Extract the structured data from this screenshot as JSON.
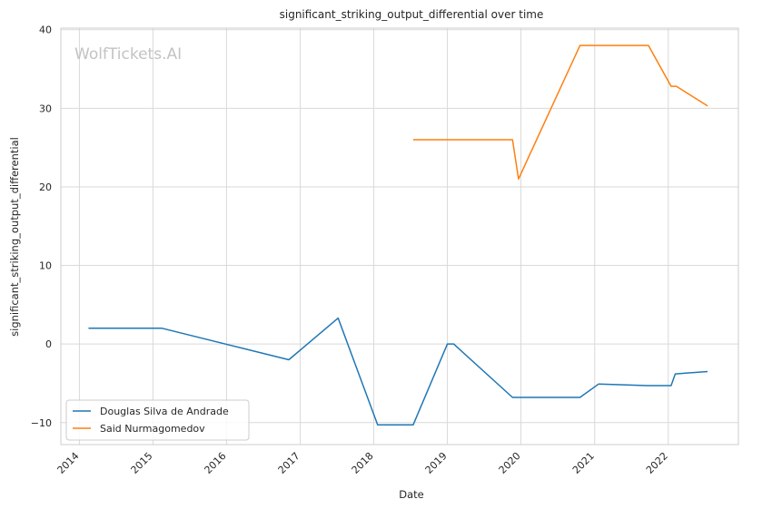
{
  "chart_data": {
    "type": "line",
    "title": "significant_striking_output_differential over time",
    "xlabel": "Date",
    "ylabel": "significant_striking_output_differential",
    "watermark": "WolfTickets.AI",
    "x_ticks": [
      "2014",
      "2015",
      "2016",
      "2017",
      "2018",
      "2019",
      "2020",
      "2021",
      "2022"
    ],
    "y_ticks": [
      -10,
      0,
      10,
      20,
      30,
      40
    ],
    "xlim": [
      "2013-10-01",
      "2022-12-15"
    ],
    "ylim": [
      -12.8,
      40.2
    ],
    "grid": true,
    "legend_position": "lower-left",
    "colors": {
      "Douglas Silva de Andrade": "#1f77b4",
      "Said Nurmagomedov": "#ff7f0e",
      "grid": "#d9d9d9",
      "spine": "#cccccc"
    },
    "series": [
      {
        "name": "Douglas Silva de Andrade",
        "color": "#1f77b4",
        "points": [
          {
            "x": "2014-02-15",
            "y": 2.0
          },
          {
            "x": "2015-02-15",
            "y": 2.0
          },
          {
            "x": "2016-11-05",
            "y": -2.0
          },
          {
            "x": "2017-07-08",
            "y": 3.3
          },
          {
            "x": "2018-01-20",
            "y": -10.3
          },
          {
            "x": "2018-07-15",
            "y": -10.3
          },
          {
            "x": "2019-01-01",
            "y": 0.0
          },
          {
            "x": "2019-02-01",
            "y": 0.0
          },
          {
            "x": "2019-11-20",
            "y": -6.8
          },
          {
            "x": "2020-10-20",
            "y": -6.8
          },
          {
            "x": "2021-01-20",
            "y": -5.1
          },
          {
            "x": "2021-09-20",
            "y": -5.3
          },
          {
            "x": "2022-01-15",
            "y": -5.3
          },
          {
            "x": "2022-02-05",
            "y": -3.8
          },
          {
            "x": "2022-07-15",
            "y": -3.5
          }
        ]
      },
      {
        "name": "Said Nurmagomedov",
        "color": "#ff7f0e",
        "points": [
          {
            "x": "2018-07-15",
            "y": 26.0
          },
          {
            "x": "2019-11-20",
            "y": 26.0
          },
          {
            "x": "2019-12-20",
            "y": 21.0
          },
          {
            "x": "2020-10-20",
            "y": 38.0
          },
          {
            "x": "2021-09-25",
            "y": 38.0
          },
          {
            "x": "2022-01-15",
            "y": 32.8
          },
          {
            "x": "2022-02-10",
            "y": 32.8
          },
          {
            "x": "2022-07-15",
            "y": 30.3
          }
        ]
      }
    ]
  }
}
